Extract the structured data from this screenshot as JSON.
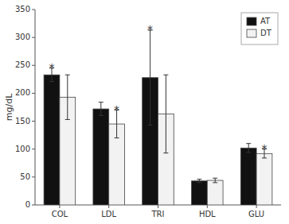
{
  "chart_data": {
    "type": "bar",
    "categories": [
      "COL",
      "LDL",
      "TRI",
      "HDL",
      "GLU"
    ],
    "series": [
      {
        "name": "AT",
        "color": "#111111",
        "values": [
          233,
          172,
          228,
          43,
          102
        ],
        "errors": [
          12,
          12,
          85,
          3,
          8
        ]
      },
      {
        "name": "DT",
        "color": "#f2f2f2",
        "values": [
          193,
          145,
          163,
          44,
          92
        ],
        "errors": [
          40,
          25,
          70,
          4,
          8
        ]
      }
    ],
    "ylabel": "mg/dL",
    "ylim": [
      0,
      350
    ],
    "yticks": [
      0,
      50,
      100,
      150,
      200,
      250,
      300,
      350
    ],
    "annotations": [
      {
        "text": "*",
        "category": "COL",
        "series": "AT"
      },
      {
        "text": "*",
        "category": "LDL",
        "series": "DT"
      },
      {
        "text": "*",
        "category": "TRI",
        "series": "AT"
      },
      {
        "text": "*",
        "category": "GLU",
        "series": "DT"
      }
    ],
    "legend": "upper right"
  }
}
